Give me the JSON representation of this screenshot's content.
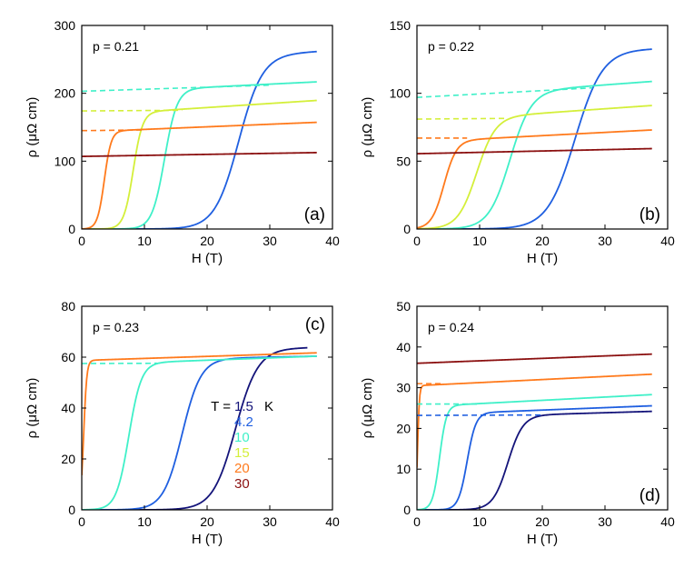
{
  "chart_data": [
    {
      "type": "line",
      "panel": "(a)",
      "annotation": "p = 0.21",
      "xlabel": "H (T)",
      "ylabel": "ρ (μΩ cm)",
      "xlim": [
        0,
        40
      ],
      "ylim": [
        0,
        300
      ],
      "xticks": [
        "0",
        "10",
        "20",
        "30",
        "40"
      ],
      "yticks": [
        "0",
        "100",
        "200",
        "300"
      ],
      "series": [
        {
          "name": "1.5 K",
          "color": "#1f5fe0",
          "kind": "sigmoid",
          "rn0": 245,
          "slope": 0.45,
          "hc": 25.0,
          "w": 1.9,
          "hend": 37.5
        },
        {
          "name": "10 K",
          "color": "#3ff0c8",
          "kind": "sigmoid",
          "rn0": 200,
          "slope": 0.45,
          "hc": 13.2,
          "w": 1.0,
          "hend": 37.5
        },
        {
          "name": "15 K",
          "color": "#d4ef3a",
          "kind": "sigmoid",
          "rn0": 167,
          "slope": 0.6,
          "hc": 8.2,
          "w": 0.75,
          "hend": 37.5
        },
        {
          "name": "20 K",
          "color": "#ff7a1c",
          "kind": "sigmoid",
          "rn0": 143,
          "slope": 0.38,
          "hc": 3.6,
          "w": 0.55,
          "hend": 37.5
        },
        {
          "name": "30 K",
          "color": "#8b1010",
          "kind": "flat",
          "rn0": 107,
          "slope": 0.15,
          "hend": 37.5
        }
      ],
      "dashed": [
        {
          "color": "#3ff0c8",
          "y0": 203,
          "x1": 30,
          "y1": 212
        },
        {
          "color": "#d4ef3a",
          "y0": 174,
          "x1": 16,
          "y1": 175
        },
        {
          "color": "#ff7a1c",
          "y0": 145,
          "x1": 10,
          "y1": 146
        }
      ]
    },
    {
      "type": "line",
      "panel": "(b)",
      "annotation": "p = 0.22",
      "xlabel": "H (T)",
      "ylabel": "ρ (μΩ cm)",
      "xlim": [
        0,
        40
      ],
      "ylim": [
        0,
        150
      ],
      "xticks": [
        "0",
        "10",
        "20",
        "30",
        "40"
      ],
      "yticks": [
        "0",
        "50",
        "100",
        "150"
      ],
      "series": [
        {
          "name": "1.5 K",
          "color": "#1f5fe0",
          "kind": "sigmoid",
          "rn0": 130,
          "slope": 0.08,
          "hc": 25.2,
          "w": 2.2,
          "hend": 37.5
        },
        {
          "name": "10 K",
          "color": "#3ff0c8",
          "kind": "sigmoid",
          "rn0": 96,
          "slope": 0.34,
          "hc": 14.8,
          "w": 1.7,
          "hend": 37.5
        },
        {
          "name": "15 K",
          "color": "#d4ef3a",
          "kind": "sigmoid",
          "rn0": 79,
          "slope": 0.32,
          "hc": 9.5,
          "w": 1.5,
          "hend": 37.5
        },
        {
          "name": "20 K",
          "color": "#ff7a1c",
          "kind": "sigmoid",
          "rn0": 64,
          "slope": 0.24,
          "hc": 4.3,
          "w": 1.0,
          "hend": 37.5
        },
        {
          "name": "30 K",
          "color": "#8b1010",
          "kind": "flat",
          "rn0": 55.5,
          "slope": 0.1,
          "hend": 37.5
        }
      ],
      "dashed": [
        {
          "color": "#3ff0c8",
          "y0": 97,
          "x1": 28,
          "y1": 104
        },
        {
          "color": "#d4ef3a",
          "y0": 81,
          "x1": 14,
          "y1": 81.5
        },
        {
          "color": "#ff7a1c",
          "y0": 67,
          "x1": 8,
          "y1": 67
        }
      ]
    },
    {
      "type": "line",
      "panel": "(c)",
      "annotation": "p = 0.23",
      "xlabel": "H (T)",
      "ylabel": "ρ (μΩ cm)",
      "xlim": [
        0,
        40
      ],
      "ylim": [
        0,
        80
      ],
      "xticks": [
        "0",
        "10",
        "20",
        "30",
        "40"
      ],
      "yticks": [
        "0",
        "20",
        "40",
        "60",
        "80"
      ],
      "series": [
        {
          "name": "1.5 K",
          "color": "#14147a",
          "kind": "sigmoid",
          "rn0": 62,
          "slope": 0.05,
          "hc": 24.5,
          "w": 1.8,
          "hend": 36.0
        },
        {
          "name": "4.2 K",
          "color": "#1f5fe0",
          "kind": "sigmoid",
          "rn0": 58.5,
          "slope": 0.05,
          "hc": 16.0,
          "w": 1.5,
          "hend": 37.5
        },
        {
          "name": "10 K",
          "color": "#3ff0c8",
          "kind": "sigmoid",
          "rn0": 57,
          "slope": 0.09,
          "hc": 7.5,
          "w": 1.0,
          "hend": 37.5
        },
        {
          "name": "20 K",
          "color": "#ff7a1c",
          "kind": "sigmoid",
          "rn0": 58.7,
          "slope": 0.08,
          "hc": 0.3,
          "w": 0.25,
          "hend": 37.5
        }
      ],
      "dashed": [
        {
          "color": "#3ff0c8",
          "y0": 57.5,
          "x1": 12,
          "y1": 57.6
        }
      ],
      "legend": {
        "prefix": "T =",
        "unit": "K",
        "entries": [
          {
            "label": "1.5",
            "color": "#14147a"
          },
          {
            "label": "4.2",
            "color": "#1f5fe0"
          },
          {
            "label": "10",
            "color": "#3ff0c8"
          },
          {
            "label": "15",
            "color": "#d4ef3a"
          },
          {
            "label": "20",
            "color": "#ff7a1c"
          },
          {
            "label": "30",
            "color": "#8b1010"
          }
        ]
      }
    },
    {
      "type": "line",
      "panel": "(d)",
      "annotation": "p = 0.24",
      "xlabel": "H (T)",
      "ylabel": "ρ (μΩ cm)",
      "xlim": [
        0,
        40
      ],
      "ylim": [
        0,
        50
      ],
      "xticks": [
        "0",
        "10",
        "20",
        "30",
        "40"
      ],
      "yticks": [
        "0",
        "10",
        "20",
        "30",
        "40",
        "50"
      ],
      "series": [
        {
          "name": "1.5 K",
          "color": "#14147a",
          "kind": "sigmoid",
          "rn0": 22.5,
          "slope": 0.045,
          "hc": 14.5,
          "w": 1.2,
          "hend": 37.5
        },
        {
          "name": "4.2 K",
          "color": "#1f5fe0",
          "kind": "sigmoid",
          "rn0": 23.3,
          "slope": 0.06,
          "hc": 8.0,
          "w": 0.7,
          "hend": 37.5
        },
        {
          "name": "10 K",
          "color": "#3ff0c8",
          "kind": "sigmoid",
          "rn0": 25.3,
          "slope": 0.08,
          "hc": 3.6,
          "w": 0.55,
          "hend": 37.5
        },
        {
          "name": "20 K",
          "color": "#ff7a1c",
          "kind": "sigmoid",
          "rn0": 30.5,
          "slope": 0.075,
          "hc": 0.1,
          "w": 0.15,
          "hend": 37.5
        },
        {
          "name": "30 K",
          "color": "#8b1010",
          "kind": "flat",
          "rn0": 36.0,
          "slope": 0.06,
          "hend": 37.5
        }
      ],
      "dashed": [
        {
          "color": "#3ff0c8",
          "y0": 26,
          "x1": 10,
          "y1": 26
        },
        {
          "color": "#1f5fe0",
          "y0": 23.2,
          "x1": 20,
          "y1": 23.3
        },
        {
          "color": "#ff7a1c",
          "y0": 31,
          "x1": 4,
          "y1": 31
        }
      ]
    }
  ]
}
